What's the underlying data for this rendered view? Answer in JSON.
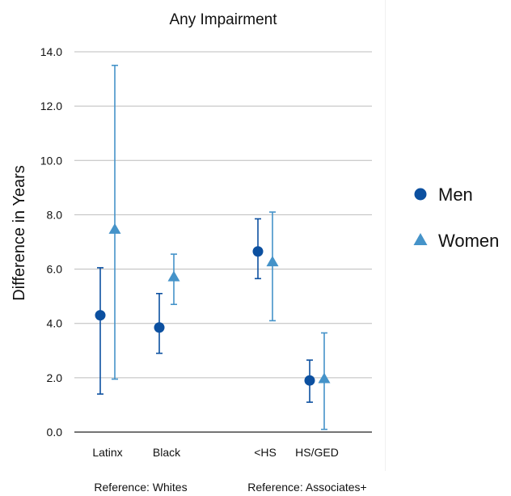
{
  "chart_data": {
    "type": "scatter",
    "title": "Any Impairment",
    "ylabel": "Difference in Years",
    "xlabel": "",
    "ylim": [
      0,
      14
    ],
    "yticks": [
      0,
      2,
      4,
      6,
      8,
      10,
      12,
      14
    ],
    "ytick_labels": [
      "0.0",
      "2.0",
      "4.0",
      "6.0",
      "8.0",
      "10.0",
      "12.0",
      "14.0"
    ],
    "grid": true,
    "legend_position": "right",
    "categories": [
      "Latinx",
      "Black",
      "<HS",
      "HS/GED"
    ],
    "group_labels": [
      "Reference: Whites",
      "Reference: Associates+"
    ],
    "series": [
      {
        "name": "Men",
        "marker": "circle",
        "color": "#0c50a0",
        "values": [
          4.3,
          3.85,
          6.65,
          1.9
        ],
        "lower": [
          1.4,
          2.9,
          5.65,
          1.1
        ],
        "upper": [
          6.05,
          5.1,
          7.85,
          2.65
        ]
      },
      {
        "name": "Women",
        "marker": "triangle",
        "color": "#4593c9",
        "values": [
          7.45,
          5.7,
          6.25,
          1.95
        ],
        "lower": [
          1.95,
          4.7,
          4.1,
          0.1
        ],
        "upper": [
          13.5,
          6.55,
          8.1,
          3.65
        ]
      }
    ]
  }
}
